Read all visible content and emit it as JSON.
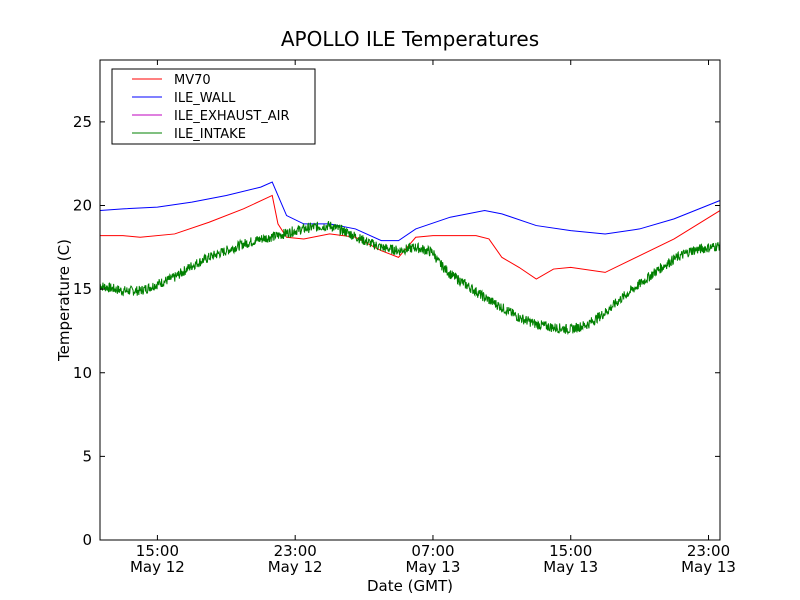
{
  "chart_data": {
    "type": "line",
    "title": "APOLLO ILE Temperatures",
    "xlabel": "Date (GMT)",
    "ylabel": "Temperature (C)",
    "xlim": [
      "2012-05-12T11:40",
      "2012-05-13T23:40"
    ],
    "ylim": [
      0,
      28.7
    ],
    "grid": false,
    "legend_position": "top-left",
    "x_ticks": [
      {
        "time": "2012-05-12T15:00",
        "label_time": "15:00",
        "label_date": "May 12"
      },
      {
        "time": "2012-05-12T23:00",
        "label_time": "23:00",
        "label_date": "May 12"
      },
      {
        "time": "2012-05-13T07:00",
        "label_time": "07:00",
        "label_date": "May 13"
      },
      {
        "time": "2012-05-13T15:00",
        "label_time": "15:00",
        "label_date": "May 13"
      },
      {
        "time": "2012-05-13T23:00",
        "label_time": "23:00",
        "label_date": "May 13"
      }
    ],
    "y_ticks": [
      0,
      5,
      10,
      15,
      20,
      25
    ],
    "series": [
      {
        "name": "MV70",
        "color": "#ff0000",
        "x": [
          "2012-05-12T11:40",
          "2012-05-12T13:00",
          "2012-05-12T14:00",
          "2012-05-12T16:00",
          "2012-05-12T18:00",
          "2012-05-12T20:00",
          "2012-05-12T21:40",
          "2012-05-12T22:00",
          "2012-05-12T22:30",
          "2012-05-12T23:30",
          "2012-05-13T01:00",
          "2012-05-13T02:30",
          "2012-05-13T04:00",
          "2012-05-13T05:00",
          "2012-05-13T06:00",
          "2012-05-13T07:00",
          "2012-05-13T08:00",
          "2012-05-13T09:30",
          "2012-05-13T10:15",
          "2012-05-13T11:00",
          "2012-05-13T12:00",
          "2012-05-13T13:00",
          "2012-05-13T14:00",
          "2012-05-13T15:00",
          "2012-05-13T17:00",
          "2012-05-13T19:00",
          "2012-05-13T21:00",
          "2012-05-13T23:40"
        ],
        "y": [
          18.2,
          18.2,
          18.1,
          18.3,
          19.0,
          19.8,
          20.6,
          18.9,
          18.1,
          18.0,
          18.3,
          18.1,
          17.3,
          16.9,
          18.1,
          18.2,
          18.2,
          18.2,
          18.0,
          16.9,
          16.3,
          15.6,
          16.2,
          16.3,
          16.0,
          17.0,
          18.0,
          19.7
        ]
      },
      {
        "name": "ILE_WALL",
        "color": "#0000ff",
        "x": [
          "2012-05-12T11:40",
          "2012-05-12T13:00",
          "2012-05-12T15:00",
          "2012-05-12T17:00",
          "2012-05-12T19:00",
          "2012-05-12T21:00",
          "2012-05-12T21:40",
          "2012-05-12T22:30",
          "2012-05-12T23:30",
          "2012-05-13T01:00",
          "2012-05-13T02:30",
          "2012-05-13T04:00",
          "2012-05-13T05:00",
          "2012-05-13T06:00",
          "2012-05-13T08:00",
          "2012-05-13T10:00",
          "2012-05-13T11:00",
          "2012-05-13T13:00",
          "2012-05-13T15:00",
          "2012-05-13T17:00",
          "2012-05-13T19:00",
          "2012-05-13T21:00",
          "2012-05-13T23:40"
        ],
        "y": [
          19.7,
          19.8,
          19.9,
          20.2,
          20.6,
          21.1,
          21.4,
          19.4,
          18.9,
          18.9,
          18.6,
          17.9,
          17.9,
          18.6,
          19.3,
          19.7,
          19.5,
          18.8,
          18.5,
          18.3,
          18.6,
          19.2,
          20.3
        ]
      },
      {
        "name": "ILE_EXHAUST_AIR",
        "color": "#bf00bf",
        "x": [],
        "y": []
      },
      {
        "name": "ILE_INTAKE",
        "color": "#008000",
        "x": [
          "2012-05-12T11:40",
          "2012-05-12T13:00",
          "2012-05-12T14:00",
          "2012-05-12T15:00",
          "2012-05-12T16:00",
          "2012-05-12T17:00",
          "2012-05-12T18:00",
          "2012-05-12T19:00",
          "2012-05-12T20:00",
          "2012-05-12T21:00",
          "2012-05-12T22:00",
          "2012-05-12T23:00",
          "2012-05-13T00:00",
          "2012-05-13T01:00",
          "2012-05-13T02:00",
          "2012-05-13T03:00",
          "2012-05-13T04:00",
          "2012-05-13T05:00",
          "2012-05-13T06:00",
          "2012-05-13T07:00",
          "2012-05-13T07:20",
          "2012-05-13T08:00",
          "2012-05-13T09:00",
          "2012-05-13T10:00",
          "2012-05-13T11:00",
          "2012-05-13T12:00",
          "2012-05-13T13:00",
          "2012-05-13T14:00",
          "2012-05-13T15:00",
          "2012-05-13T16:00",
          "2012-05-13T17:00",
          "2012-05-13T18:00",
          "2012-05-13T19:00",
          "2012-05-13T20:00",
          "2012-05-13T21:00",
          "2012-05-13T22:00",
          "2012-05-13T23:40"
        ],
        "y": [
          15.2,
          14.9,
          14.9,
          15.3,
          15.7,
          16.4,
          16.9,
          17.3,
          17.7,
          18.0,
          18.2,
          18.5,
          18.7,
          18.8,
          18.4,
          17.9,
          17.5,
          17.3,
          17.5,
          17.2,
          16.6,
          15.9,
          15.2,
          14.5,
          13.9,
          13.3,
          12.9,
          12.7,
          12.6,
          12.9,
          13.6,
          14.5,
          15.3,
          16.1,
          16.8,
          17.3,
          17.6
        ]
      }
    ]
  }
}
